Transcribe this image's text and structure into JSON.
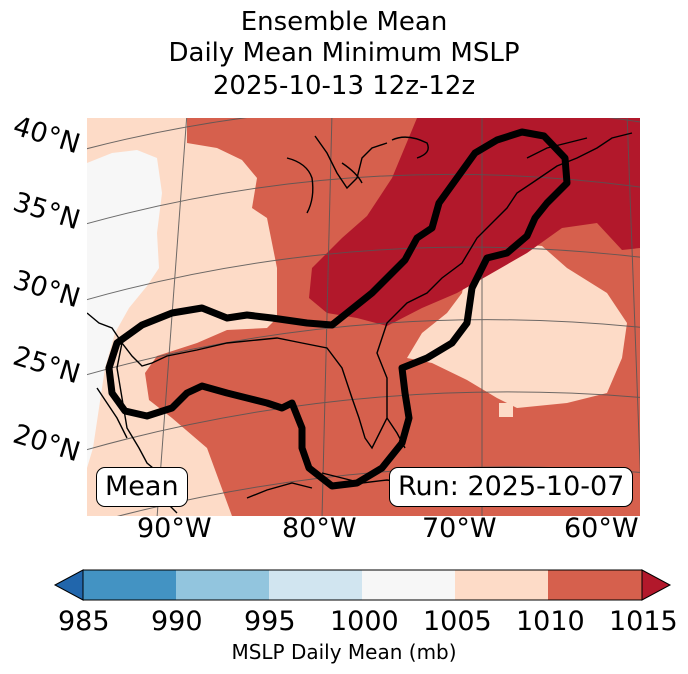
{
  "title": {
    "line1": "Ensemble Mean",
    "line2": "Daily Mean Minimum MSLP",
    "line3": "2025-10-13 12z-12z"
  },
  "map": {
    "lat_labels": [
      "40°N",
      "35°N",
      "30°N",
      "25°N",
      "20°N"
    ],
    "lon_labels": [
      "90°W",
      "80°W",
      "70°W",
      "60°W"
    ],
    "mean_label": "Mean",
    "run_label": "Run: 2025-10-07"
  },
  "colorbar": {
    "ticks": [
      "985",
      "990",
      "995",
      "1000",
      "1005",
      "1010",
      "1015"
    ],
    "title": "MSLP Daily Mean (mb)",
    "under_color": "#2166ac",
    "over_color": "#b2182b",
    "colors": [
      "#4393c3",
      "#92c5de",
      "#d1e5f0",
      "#f7f7f7",
      "#fddbc7",
      "#d6604d"
    ]
  },
  "colors": {
    "c1000": "#f7f7f7",
    "c1005": "#fddbc7",
    "c1010": "#d6604d",
    "c1015": "#b2182b"
  }
}
